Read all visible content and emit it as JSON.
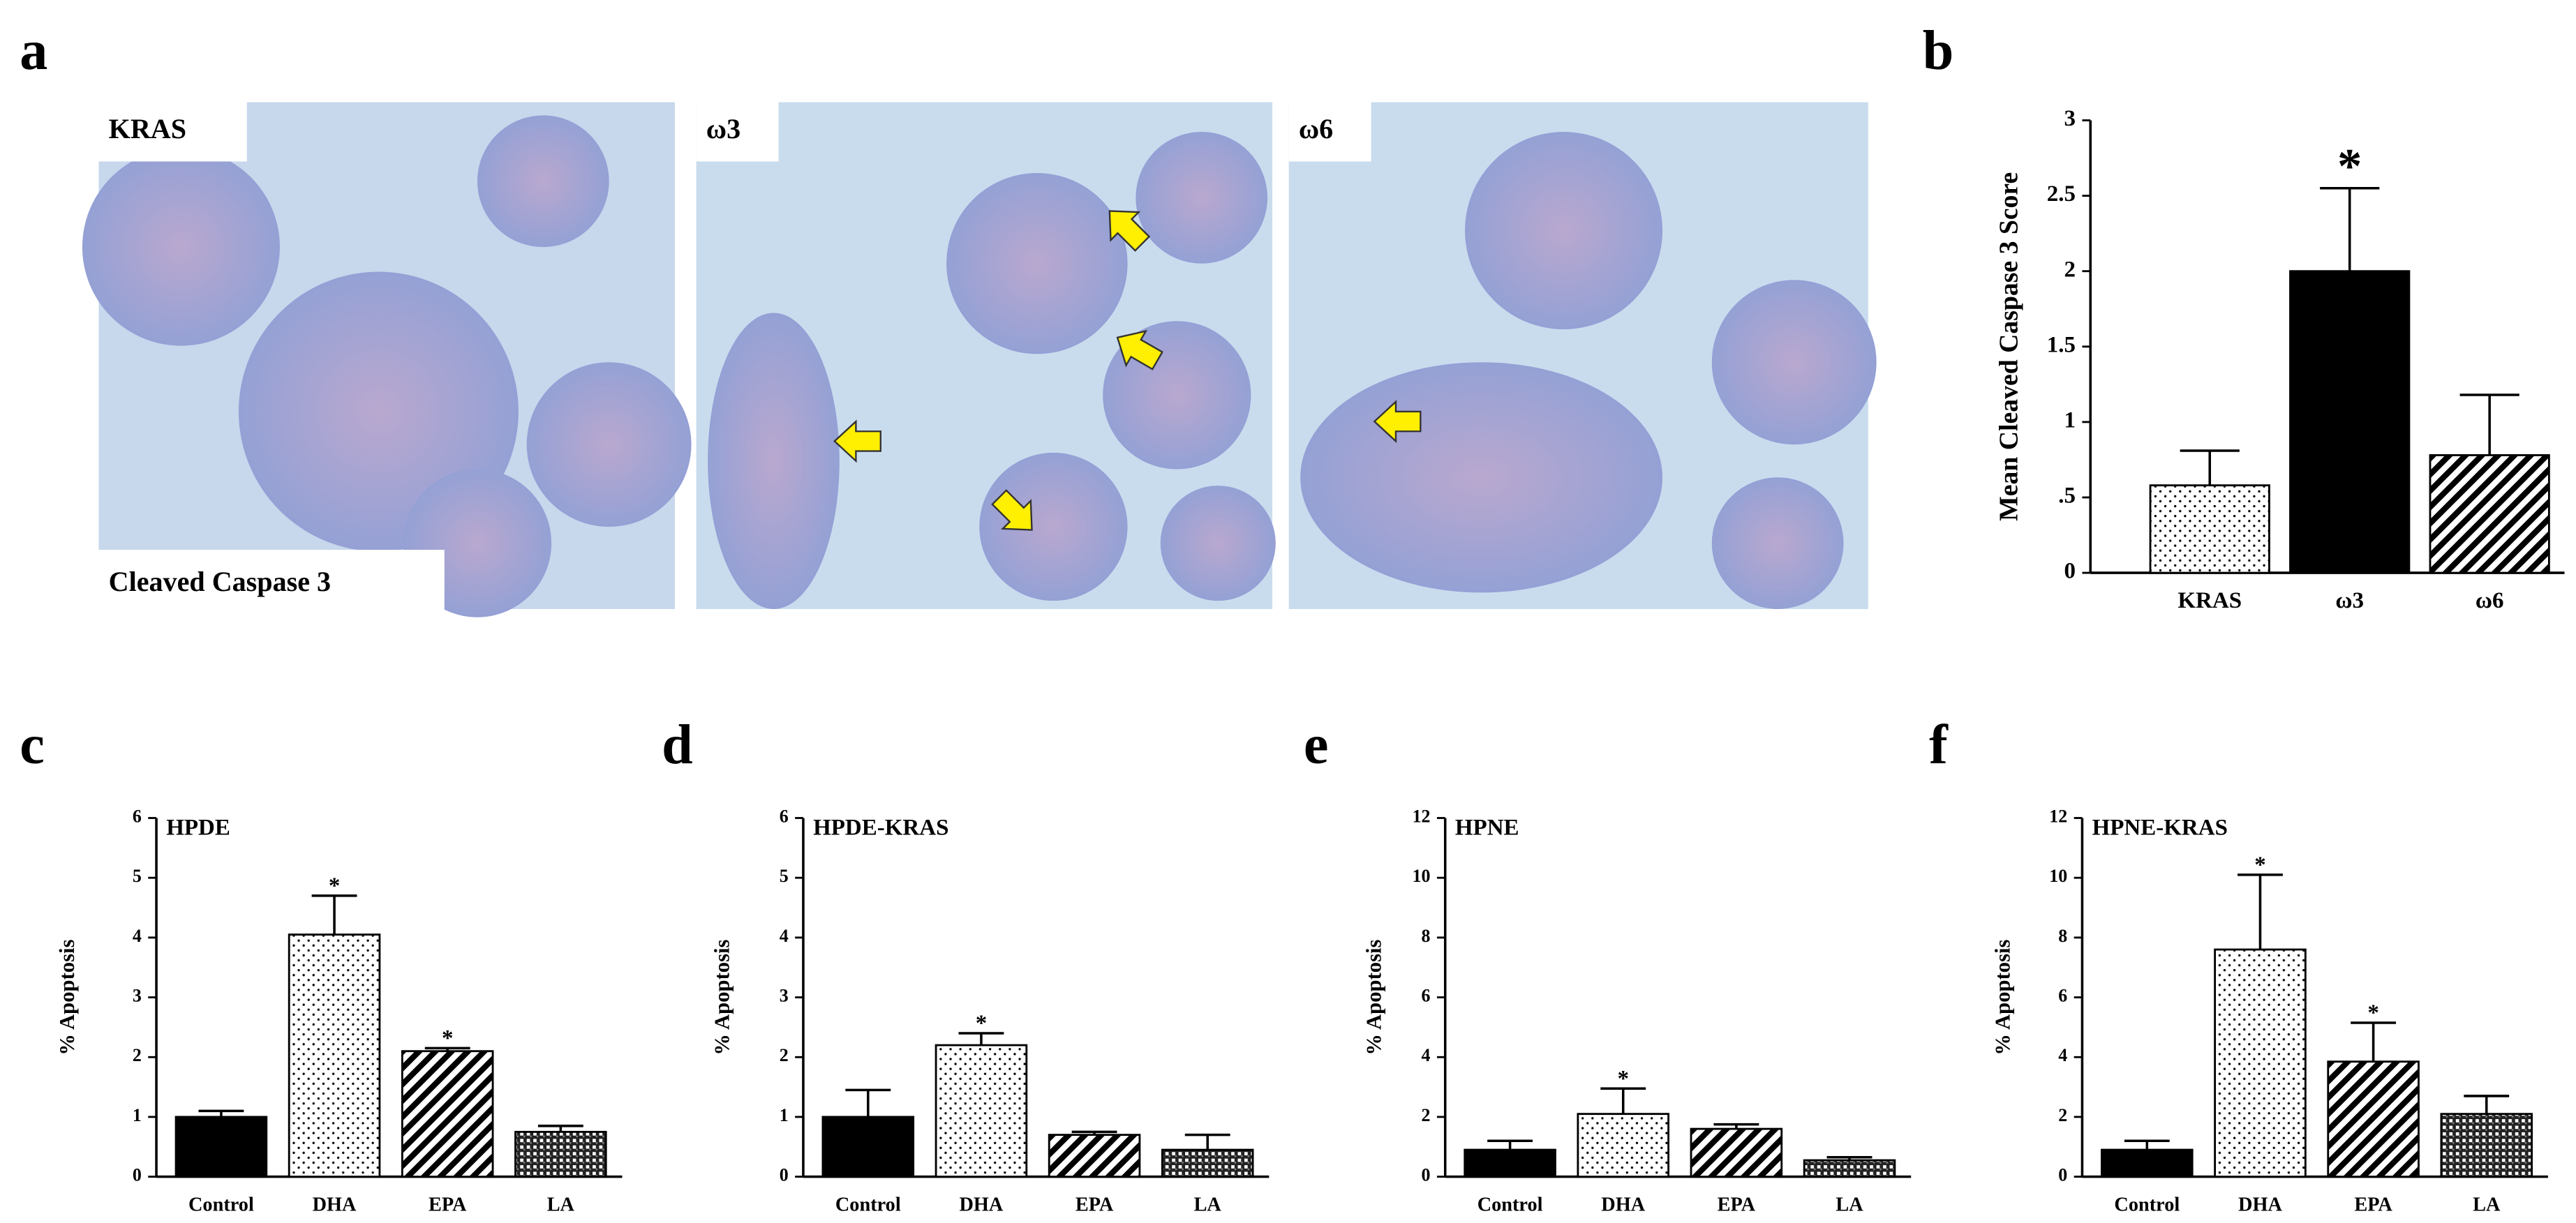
{
  "figure": {
    "panel_a": {
      "label": "a",
      "images": [
        {
          "label": "KRAS"
        },
        {
          "label": "ω3"
        },
        {
          "label": "ω6"
        }
      ],
      "stain": "Cleaved Caspase 3"
    }
  },
  "chart_data": [
    {
      "type": "bar",
      "panel_label": "b",
      "y_label": "Mean Cleaved Caspase 3 Score",
      "categories": [
        "KRAS",
        "ω3",
        "ω6"
      ],
      "values": [
        0.58,
        2.0,
        0.78
      ],
      "errors": [
        0.23,
        0.55,
        0.4
      ],
      "significance": [
        null,
        "*",
        null
      ],
      "patterns": [
        "dots",
        "solid",
        "stripes"
      ],
      "ylim": [
        0,
        3
      ],
      "yticks": [
        0,
        {
          "value": 0.5,
          "label": ".5"
        },
        1,
        1.5,
        2,
        2.5,
        3
      ]
    },
    {
      "type": "bar",
      "panel_label": "c",
      "title": "HPDE",
      "y_label": "% Apoptosis",
      "categories": [
        "Control",
        "DHA",
        "EPA",
        "LA"
      ],
      "values": [
        1.0,
        4.05,
        2.1,
        0.75
      ],
      "errors": [
        0.1,
        0.65,
        0.05,
        0.1
      ],
      "significance": [
        null,
        "*",
        "*",
        null
      ],
      "patterns": [
        "solid",
        "dots",
        "stripes",
        "checker"
      ],
      "ylim": [
        0,
        6
      ],
      "yticks": [
        0,
        1,
        2,
        3,
        4,
        5,
        6
      ]
    },
    {
      "type": "bar",
      "panel_label": "d",
      "title": "HPDE-KRAS",
      "y_label": "% Apoptosis",
      "categories": [
        "Control",
        "DHA",
        "EPA",
        "LA"
      ],
      "values": [
        1.0,
        2.2,
        0.7,
        0.45
      ],
      "errors": [
        0.45,
        0.2,
        0.05,
        0.25
      ],
      "significance": [
        null,
        "*",
        null,
        null
      ],
      "patterns": [
        "solid",
        "dots",
        "stripes",
        "checker"
      ],
      "ylim": [
        0,
        6
      ],
      "yticks": [
        0,
        1,
        2,
        3,
        4,
        5,
        6
      ]
    },
    {
      "type": "bar",
      "panel_label": "e",
      "title": "HPNE",
      "y_label": "% Apoptosis",
      "categories": [
        "Control",
        "DHA",
        "EPA",
        "LA"
      ],
      "values": [
        0.9,
        2.1,
        1.6,
        0.55
      ],
      "errors": [
        0.3,
        0.85,
        0.15,
        0.1
      ],
      "significance": [
        null,
        "*",
        null,
        null
      ],
      "patterns": [
        "solid",
        "dots",
        "stripes",
        "checker"
      ],
      "ylim": [
        0,
        12
      ],
      "yticks": [
        0,
        2,
        4,
        6,
        8,
        10,
        12
      ]
    },
    {
      "type": "bar",
      "panel_label": "f",
      "title": "HPNE-KRAS",
      "y_label": "% Apoptosis",
      "categories": [
        "Control",
        "DHA",
        "EPA",
        "LA"
      ],
      "values": [
        0.9,
        7.6,
        3.85,
        2.1
      ],
      "errors": [
        0.3,
        2.5,
        1.3,
        0.6
      ],
      "significance": [
        null,
        "*",
        "*",
        null
      ],
      "patterns": [
        "solid",
        "dots",
        "stripes",
        "checker"
      ],
      "ylim": [
        0,
        12
      ],
      "yticks": [
        0,
        2,
        4,
        6,
        8,
        10,
        12
      ]
    }
  ]
}
